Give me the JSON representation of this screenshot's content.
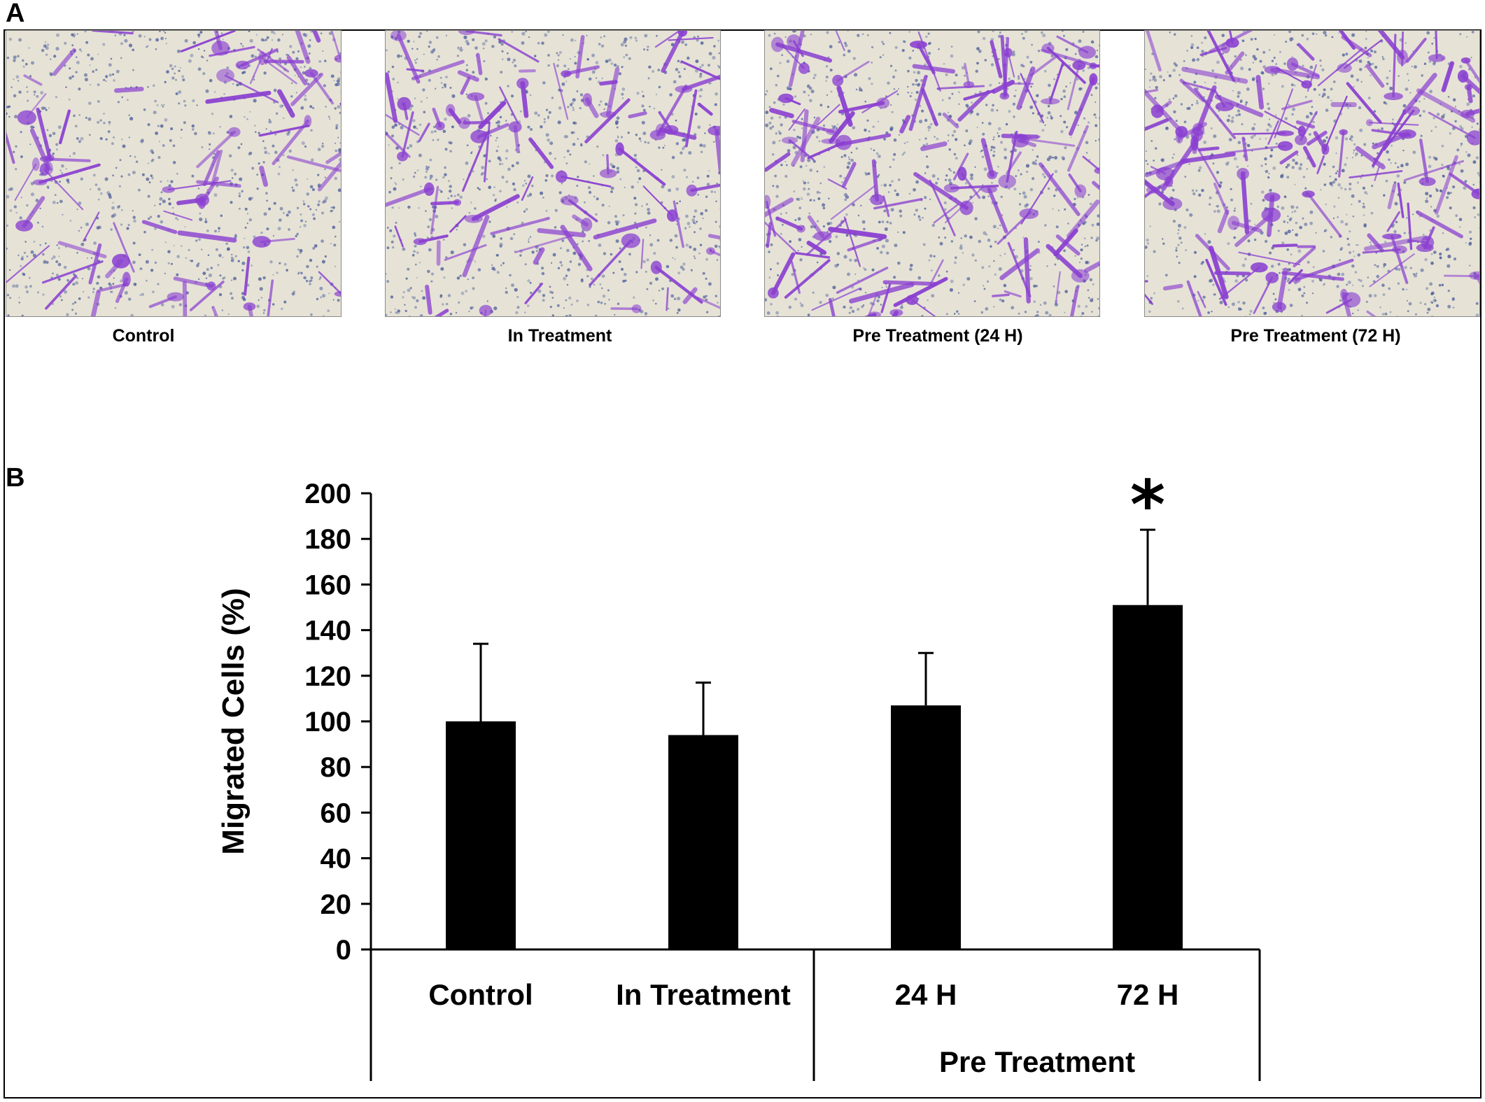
{
  "panel_a": {
    "label": "A",
    "images": [
      {
        "caption": "Control"
      },
      {
        "caption": "In Treatment"
      },
      {
        "caption": "Pre Treatment (24 H)"
      },
      {
        "caption": "Pre Treatment (72 H)"
      }
    ],
    "stain_color": "#8a3fd1",
    "dot_color": "#4a5a9a",
    "background_color": "#e6e3d6"
  },
  "panel_b": {
    "label": "B"
  },
  "chart_data": {
    "type": "bar",
    "categories": [
      "Control",
      "In Treatment",
      "24 H",
      "72 H"
    ],
    "group_label": "Pre Treatment",
    "group_members": [
      "24 H",
      "72 H"
    ],
    "values": [
      100,
      94,
      107,
      151
    ],
    "error_upper": [
      134,
      117,
      130,
      184
    ],
    "significance": [
      "",
      "",
      "",
      "*"
    ],
    "ylabel": "Migrated Cells (%)",
    "xlabel": "",
    "title": "",
    "ylim": [
      0,
      200
    ],
    "yticks": [
      0,
      20,
      40,
      60,
      80,
      100,
      120,
      140,
      160,
      180,
      200
    ],
    "bar_color": "#000000",
    "grid": false,
    "legend": "none"
  }
}
